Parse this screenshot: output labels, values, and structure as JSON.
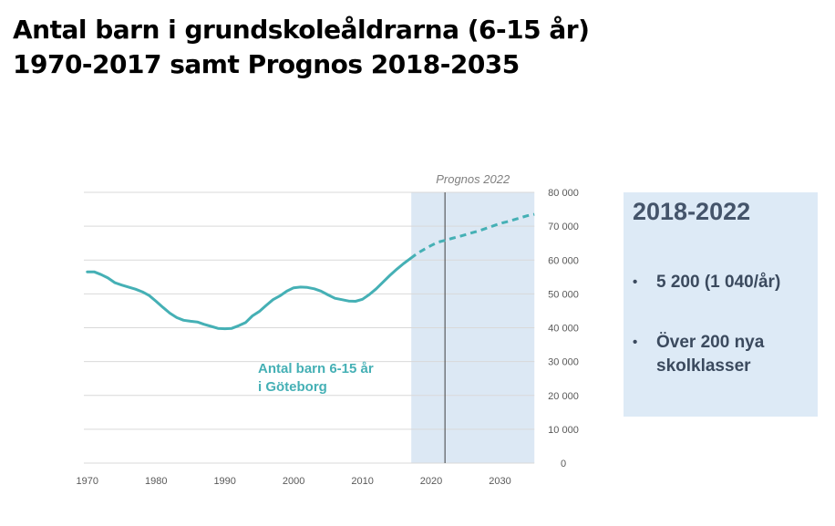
{
  "title": {
    "line1": "Antal barn i grundskoleåldrarna (6-15 år)",
    "line2": "1970-2017 samt Prognos 2018-2035"
  },
  "chart_data": {
    "type": "line",
    "series": [
      {
        "name": "Antal barn 6-15 år i Göteborg",
        "color": "#45b0b5",
        "points": [
          [
            1970,
            56500
          ],
          [
            1971,
            56500
          ],
          [
            1972,
            55700
          ],
          [
            1973,
            54700
          ],
          [
            1974,
            53300
          ],
          [
            1975,
            52600
          ],
          [
            1976,
            52000
          ],
          [
            1977,
            51400
          ],
          [
            1978,
            50600
          ],
          [
            1979,
            49500
          ],
          [
            1980,
            47800
          ],
          [
            1981,
            46000
          ],
          [
            1982,
            44300
          ],
          [
            1983,
            43000
          ],
          [
            1984,
            42200
          ],
          [
            1985,
            41900
          ],
          [
            1986,
            41700
          ],
          [
            1987,
            41000
          ],
          [
            1988,
            40400
          ],
          [
            1989,
            39800
          ],
          [
            1990,
            39700
          ],
          [
            1991,
            39800
          ],
          [
            1992,
            40600
          ],
          [
            1993,
            41500
          ],
          [
            1994,
            43500
          ],
          [
            1995,
            44800
          ],
          [
            1996,
            46600
          ],
          [
            1997,
            48300
          ],
          [
            1998,
            49400
          ],
          [
            1999,
            50800
          ],
          [
            2000,
            51800
          ],
          [
            2001,
            52000
          ],
          [
            2002,
            51900
          ],
          [
            2003,
            51500
          ],
          [
            2004,
            50800
          ],
          [
            2005,
            49700
          ],
          [
            2006,
            48700
          ],
          [
            2007,
            48300
          ],
          [
            2008,
            47900
          ],
          [
            2009,
            47800
          ],
          [
            2010,
            48400
          ],
          [
            2011,
            49800
          ],
          [
            2012,
            51500
          ],
          [
            2013,
            53500
          ],
          [
            2014,
            55500
          ],
          [
            2015,
            57300
          ],
          [
            2016,
            59000
          ],
          [
            2017,
            60500
          ]
        ],
        "forecast_points": [
          [
            2017,
            60500
          ],
          [
            2018,
            62000
          ],
          [
            2019,
            63200
          ],
          [
            2020,
            64300
          ],
          [
            2021,
            65300
          ],
          [
            2022,
            65800
          ],
          [
            2023,
            66400
          ],
          [
            2024,
            66900
          ],
          [
            2025,
            67500
          ],
          [
            2026,
            68100
          ],
          [
            2027,
            68700
          ],
          [
            2028,
            69400
          ],
          [
            2029,
            70100
          ],
          [
            2030,
            70800
          ],
          [
            2031,
            71300
          ],
          [
            2032,
            71900
          ],
          [
            2033,
            72500
          ],
          [
            2034,
            73100
          ],
          [
            2035,
            73500
          ]
        ],
        "label_lines": [
          "Antal barn 6-15 år",
          "i Göteborg"
        ]
      }
    ],
    "forecast_region": {
      "start": 2017.5,
      "end": 2035,
      "label": "Prognos 2022",
      "color": "#dce8f4"
    },
    "reference_line_x": 2022,
    "x_ticks": [
      1970,
      1980,
      1990,
      2000,
      2010,
      2020,
      2030
    ],
    "xlim": [
      1969.5,
      2035.5
    ],
    "y_ticks": [
      0,
      10000,
      20000,
      30000,
      40000,
      50000,
      60000,
      70000,
      80000
    ],
    "y_tick_labels": [
      "0",
      "10 000",
      "20 000",
      "30 000",
      "40 000",
      "50 000",
      "60 000",
      "70 000",
      "80 000"
    ],
    "ylim": [
      0,
      80000
    ],
    "grid": true,
    "y_axis_position": "right"
  },
  "info_box": {
    "heading": "2018-2022",
    "items": [
      "5 200 (1 040/år)",
      "Över 200 nya skolklasser"
    ]
  }
}
